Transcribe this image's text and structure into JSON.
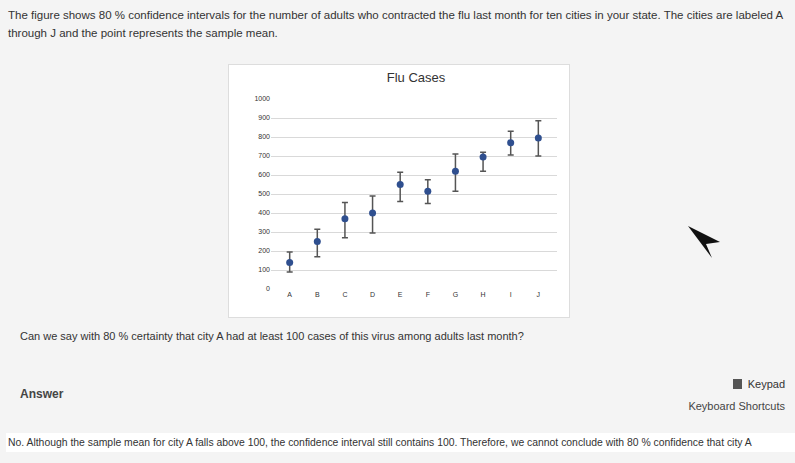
{
  "page": {
    "intro": "The figure shows 80 % confidence intervals for the number of adults who contracted the flu last month for ten cities in your state. The cities are labeled A through J and the point represents the sample mean.",
    "question": "Can we say with 80 % certainty that city A had at least 100 cases of this virus among adults last month?",
    "answer_label": "Answer",
    "keypad": "Keypad",
    "keyboard_shortcuts": "Keyboard Shortcuts",
    "answer_text": "No. Although the sample mean for city A falls above 100, the confidence interval still contains 100. Therefore, we cannot conclude with 80 % confidence that city A"
  },
  "chart_data": {
    "type": "scatter",
    "title": "Flu Cases",
    "categories": [
      "A",
      "B",
      "C",
      "D",
      "E",
      "F",
      "G",
      "H",
      "I",
      "J"
    ],
    "values": [
      140,
      250,
      370,
      400,
      550,
      515,
      620,
      695,
      770,
      795
    ],
    "lower": [
      90,
      170,
      270,
      295,
      460,
      450,
      515,
      620,
      705,
      700
    ],
    "upper": [
      195,
      315,
      455,
      490,
      615,
      575,
      710,
      720,
      830,
      885
    ],
    "color": "#2f4f8f",
    "marker": "circle",
    "ylim": [
      0,
      1000
    ],
    "yticks": [
      0,
      100,
      200,
      300,
      400,
      500,
      600,
      700,
      800,
      900,
      1000
    ],
    "grid": true
  }
}
